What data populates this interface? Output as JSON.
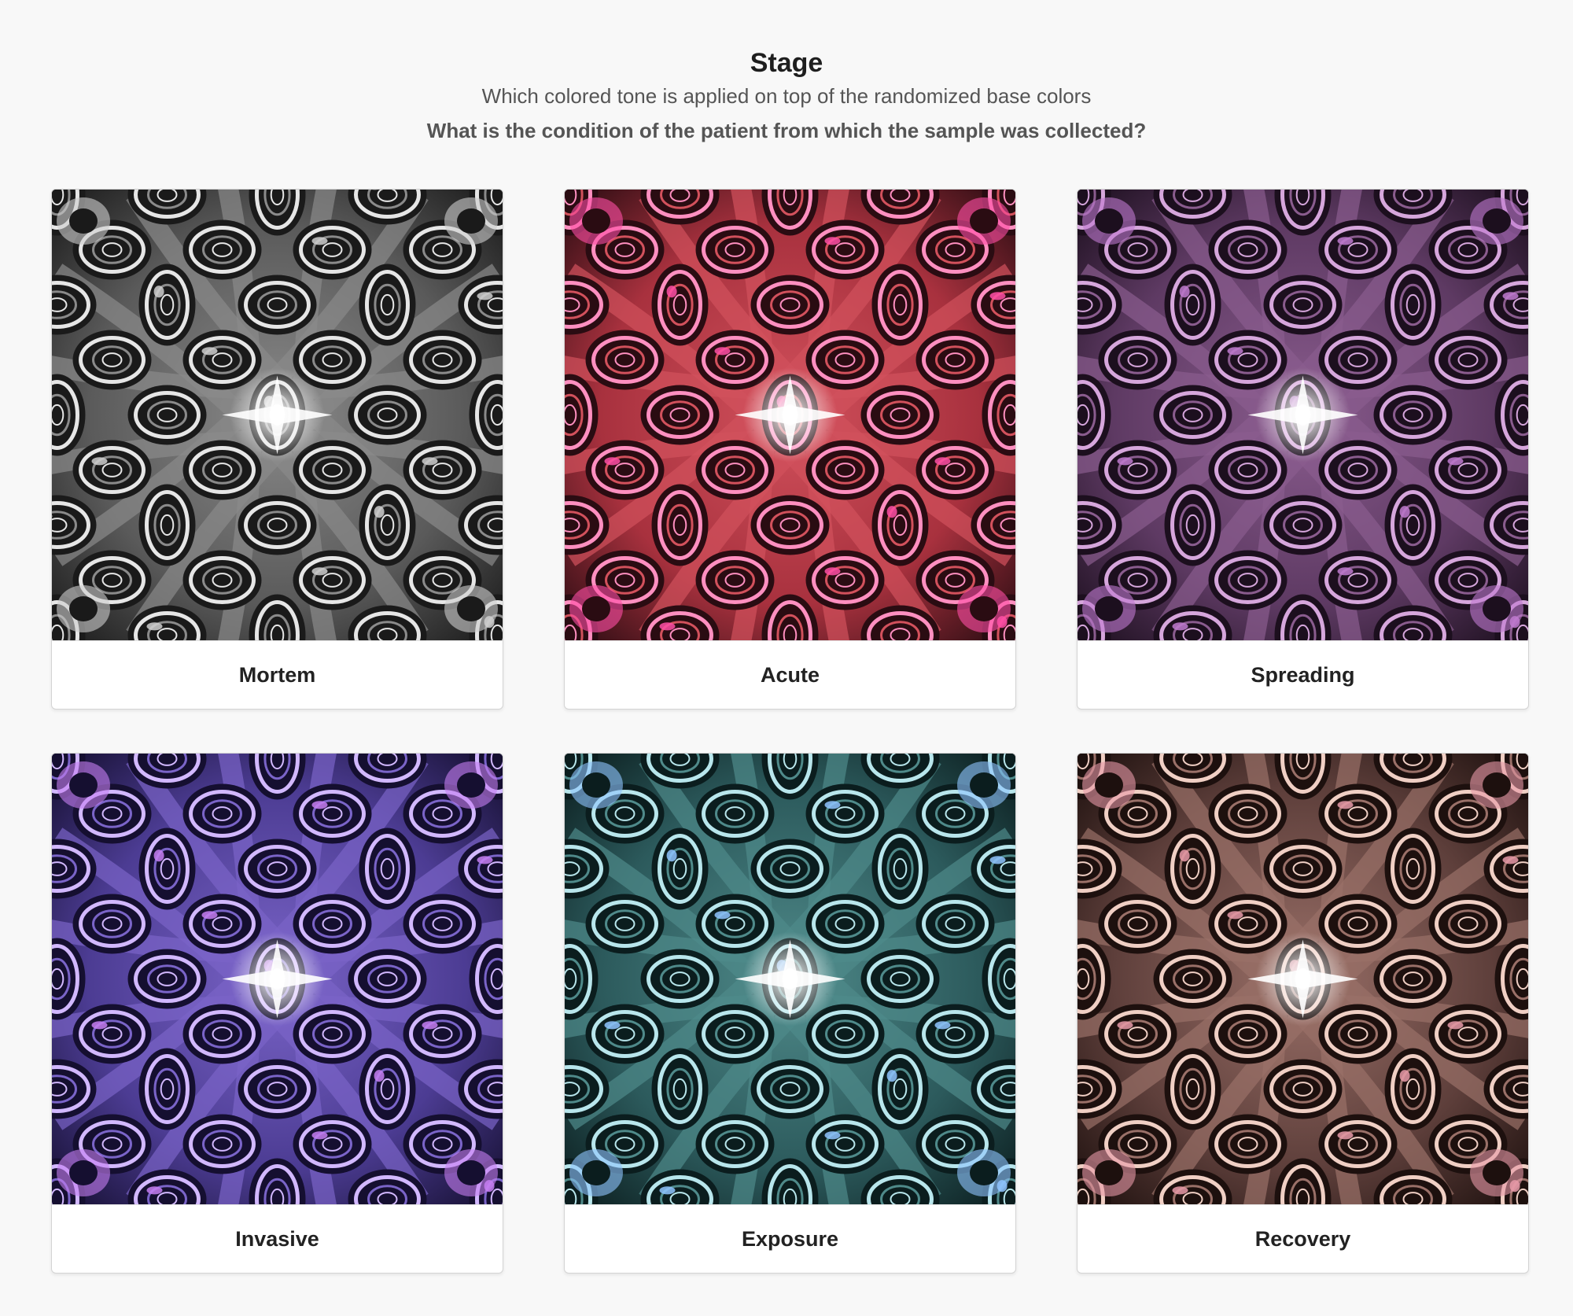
{
  "header": {
    "title": "Stage",
    "subtitle": "Which colored tone is applied on top of the randomized base colors",
    "question": "What is the condition of the patient from which the sample was collected?"
  },
  "options": [
    {
      "label": "Mortem",
      "tone": {
        "base": "#5a5a5a",
        "mid": "#8a8a8a",
        "light": "#e6e6e6",
        "dark": "#1a1a1a",
        "accent": "#cfcfcf"
      }
    },
    {
      "label": "Acute",
      "tone": {
        "base": "#a8313e",
        "mid": "#d2515c",
        "light": "#ff8fc0",
        "dark": "#2a0c12",
        "accent": "#ff4fa6"
      }
    },
    {
      "label": "Spreading",
      "tone": {
        "base": "#5e3a63",
        "mid": "#8a5c8e",
        "light": "#d6a6dc",
        "dark": "#1c0f1e",
        "accent": "#c07ad0"
      }
    },
    {
      "label": "Invasive",
      "tone": {
        "base": "#4c3c93",
        "mid": "#7a64c8",
        "light": "#d2b8ff",
        "dark": "#150f30",
        "accent": "#c67ef2"
      }
    },
    {
      "label": "Exposure",
      "tone": {
        "base": "#2c5a5c",
        "mid": "#4f8a8a",
        "light": "#b8e6ec",
        "dark": "#0b1d1e",
        "accent": "#8fc4ff"
      }
    },
    {
      "label": "Recovery",
      "tone": {
        "base": "#5e3f3b",
        "mid": "#9a7068",
        "light": "#f0cfc4",
        "dark": "#1d100e",
        "accent": "#e89aa8"
      }
    }
  ]
}
